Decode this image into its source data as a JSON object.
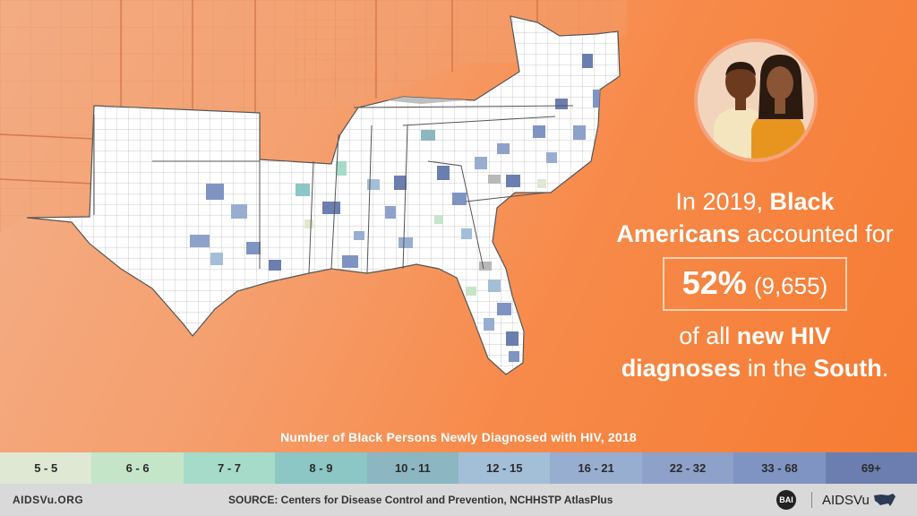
{
  "headline": {
    "line1_pre": "In 2019, ",
    "line1_bold": "Black",
    "line2_bold": "Americans",
    "line2_rest": " accounted for",
    "stat_percent": "52%",
    "stat_count": "(9,655)",
    "line3_pre": "of all ",
    "line3_bold": "new HIV",
    "line4_bold1": "diagnoses",
    "line4_mid": " in the ",
    "line4_bold2": "South",
    "line4_end": "."
  },
  "legend": {
    "title": "Number of Black Persons Newly Diagnosed with HIV, 2018",
    "bins": [
      {
        "label": "5 - 5",
        "color": "#dfe8d2"
      },
      {
        "label": "6 - 6",
        "color": "#c5e5c8"
      },
      {
        "label": "7 - 7",
        "color": "#a6dbc9"
      },
      {
        "label": "8 - 9",
        "color": "#8cc6c5"
      },
      {
        "label": "10 - 11",
        "color": "#8bb6c2"
      },
      {
        "label": "12 - 15",
        "color": "#a3bfd7"
      },
      {
        "label": "16 - 21",
        "color": "#97aed0"
      },
      {
        "label": "22 - 32",
        "color": "#8ea1c9"
      },
      {
        "label": "33 - 68",
        "color": "#7f94c3"
      },
      {
        "label": "69+",
        "color": "#6c7eaf"
      }
    ]
  },
  "map": {
    "no_data_color": "#ffffff",
    "suppressed_color": "#b8b8b8",
    "border_color": "#9a9a9a",
    "shading": "county-level new HIV diagnoses among Black persons, Southern U.S. states"
  },
  "footer": {
    "site": "AIDSVu.ORG",
    "source": "SOURCE: Centers for Disease Control and Prevention, NCHHSTP AtlasPlus",
    "bai_logo": "BAI",
    "brand": "AIDSVu"
  },
  "icons": {
    "people": "two-people-illustration-icon",
    "us_map": "us-map-icon"
  }
}
